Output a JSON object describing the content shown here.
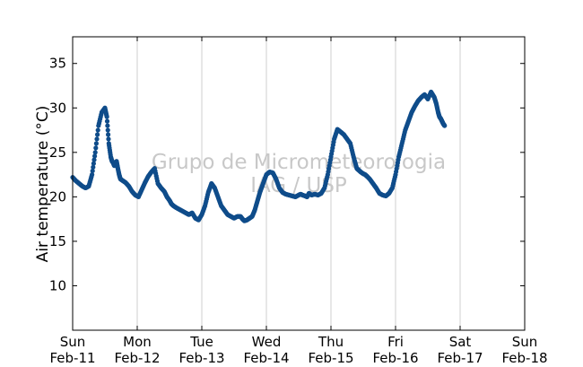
{
  "chart_data": {
    "type": "scatter",
    "ylabel": "Air temperature (°C)",
    "watermark": [
      "Grupo de Micrometeorologia",
      "IAG / USP"
    ],
    "xlim": [
      0,
      7
    ],
    "ylim": [
      5,
      38
    ],
    "yticks": [
      10,
      15,
      20,
      25,
      30,
      35
    ],
    "xticks": [
      {
        "x": 0,
        "day": "Sun",
        "date": "Feb-11"
      },
      {
        "x": 1,
        "day": "Mon",
        "date": "Feb-12"
      },
      {
        "x": 2,
        "day": "Tue",
        "date": "Feb-13"
      },
      {
        "x": 3,
        "day": "Wed",
        "date": "Feb-14"
      },
      {
        "x": 4,
        "day": "Thu",
        "date": "Feb-15"
      },
      {
        "x": 5,
        "day": "Fri",
        "date": "Feb-16"
      },
      {
        "x": 6,
        "day": "Sat",
        "date": "Feb-17"
      },
      {
        "x": 7,
        "day": "Sun",
        "date": "Feb-18"
      }
    ],
    "grid": "vertical",
    "point_color": "#0f4c8a",
    "series": [
      {
        "x": [
          0.0,
          0.05,
          0.1,
          0.15,
          0.2,
          0.25,
          0.3,
          0.35,
          0.4,
          0.45,
          0.5,
          0.53,
          0.56,
          0.59,
          0.61,
          0.63,
          0.645,
          0.66,
          0.68,
          0.7,
          0.72,
          0.74,
          0.78,
          0.82,
          0.87,
          0.92,
          0.97,
          1.02,
          1.07,
          1.12,
          1.17,
          1.22,
          1.27,
          1.32,
          1.37,
          1.42,
          1.46,
          1.5,
          1.53,
          1.56,
          1.6,
          1.65,
          1.7,
          1.75,
          1.8,
          1.85,
          1.9,
          1.95,
          2.0,
          2.05,
          2.1,
          2.15,
          2.2,
          2.25,
          2.3,
          2.35,
          2.4,
          2.45,
          2.5,
          2.55,
          2.6,
          2.63,
          2.66,
          2.7,
          2.74,
          2.78,
          2.82,
          2.86,
          2.9,
          2.95,
          3.0,
          3.05,
          3.1,
          3.15,
          3.2,
          3.25,
          3.3,
          3.35,
          3.4,
          3.45,
          3.5,
          3.53,
          3.56,
          3.6,
          3.63,
          3.66,
          3.7,
          3.75,
          3.8,
          3.85,
          3.9,
          3.95,
          4.0,
          4.05,
          4.1,
          4.15,
          4.2,
          4.25,
          4.3,
          4.35,
          4.4,
          4.43,
          4.46,
          4.5,
          4.53,
          4.56,
          4.6,
          4.65,
          4.7,
          4.75,
          4.8,
          4.85,
          4.9,
          4.95,
          5.0,
          5.05,
          5.1,
          5.15,
          5.2,
          5.25,
          5.3,
          5.35,
          5.4,
          5.45,
          5.5,
          5.55,
          5.6,
          5.63,
          5.66,
          5.68,
          5.7,
          5.72,
          5.74,
          5.76
        ],
        "y": [
          22.2,
          21.8,
          21.5,
          21.2,
          21.0,
          21.2,
          22.5,
          25.0,
          28.0,
          29.5,
          30.0,
          29.0,
          26.0,
          24.5,
          24.0,
          23.8,
          23.5,
          23.8,
          24.0,
          23.2,
          22.5,
          22.0,
          21.8,
          21.6,
          21.2,
          20.6,
          20.2,
          20.0,
          20.8,
          21.6,
          22.3,
          22.8,
          23.2,
          21.5,
          21.0,
          20.6,
          20.0,
          19.6,
          19.2,
          19.0,
          18.8,
          18.6,
          18.4,
          18.2,
          18.0,
          18.2,
          17.6,
          17.4,
          18.0,
          19.0,
          20.5,
          21.5,
          21.0,
          20.0,
          19.0,
          18.5,
          18.0,
          17.8,
          17.6,
          17.8,
          17.8,
          17.5,
          17.3,
          17.4,
          17.6,
          17.8,
          18.5,
          19.5,
          20.5,
          21.5,
          22.5,
          22.8,
          22.7,
          22.0,
          21.0,
          20.5,
          20.3,
          20.2,
          20.1,
          20.0,
          20.2,
          20.3,
          20.2,
          20.1,
          20.0,
          20.4,
          20.2,
          20.3,
          20.2,
          20.4,
          21.0,
          22.5,
          24.5,
          26.5,
          27.6,
          27.3,
          27.0,
          26.5,
          26.0,
          24.5,
          23.2,
          23.0,
          22.8,
          22.6,
          22.5,
          22.3,
          22.0,
          21.5,
          21.0,
          20.4,
          20.2,
          20.1,
          20.4,
          21.0,
          22.5,
          24.5,
          26.0,
          27.5,
          28.5,
          29.5,
          30.2,
          30.8,
          31.2,
          31.5,
          31.0,
          31.8,
          31.2,
          30.5,
          29.5,
          29.0,
          28.8,
          28.5,
          28.2,
          28.0
        ]
      }
    ]
  }
}
